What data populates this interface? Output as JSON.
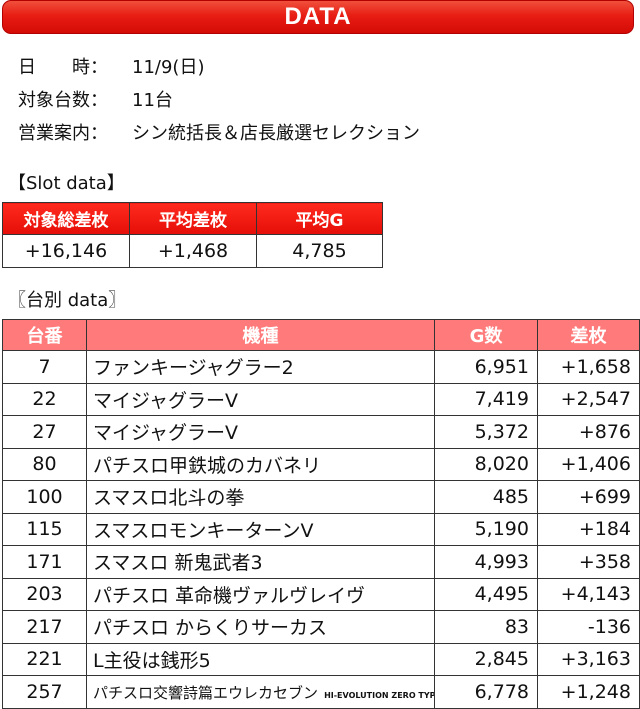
{
  "banner": {
    "title": "DATA"
  },
  "info": {
    "date_label": "日　　時：",
    "date_value": "11/9(日)",
    "count_label": "対象台数：",
    "count_value": "11台",
    "guide_label": "営業案内：",
    "guide_value": "シン統括長＆店長厳選セレクション"
  },
  "slot_section": {
    "label": "【Slot data】",
    "headers": [
      "対象総差枚",
      "平均差枚",
      "平均G"
    ],
    "values": [
      "+16,146",
      "+1,468",
      "4,785"
    ]
  },
  "unit_section": {
    "label": "〖台別 data〗",
    "headers": [
      "台番",
      "機種",
      "G数",
      "差枚"
    ],
    "rows": [
      {
        "no": "7",
        "name": "ファンキージャグラー2",
        "g": "6,951",
        "diff": "+1,658"
      },
      {
        "no": "22",
        "name": "マイジャグラーⅤ",
        "g": "7,419",
        "diff": "+2,547"
      },
      {
        "no": "27",
        "name": "マイジャグラーⅤ",
        "g": "5,372",
        "diff": "+876"
      },
      {
        "no": "80",
        "name": "パチスロ甲鉄城のカバネリ",
        "g": "8,020",
        "diff": "+1,406"
      },
      {
        "no": "100",
        "name": "スマスロ北斗の拳",
        "g": "485",
        "diff": "+699"
      },
      {
        "no": "115",
        "name": "スマスロモンキーターンV",
        "g": "5,190",
        "diff": "+184"
      },
      {
        "no": "171",
        "name": "スマスロ 新鬼武者3",
        "g": "4,993",
        "diff": "+358"
      },
      {
        "no": "203",
        "name": "パチスロ 革命機ヴァルヴレイヴ",
        "g": "4,495",
        "diff": "+4,143"
      },
      {
        "no": "217",
        "name": "パチスロ からくりサーカス",
        "g": "83",
        "diff": "-136"
      },
      {
        "no": "221",
        "name": "L主役は銭形5",
        "g": "2,845",
        "diff": "+3,163"
      },
      {
        "no": "257",
        "name": "パチスロ交響詩篇エウレカセブン",
        "name_suffix": "HI-EVOLUTION ZERO TYPE-ART",
        "g": "6,778",
        "diff": "+1,248"
      }
    ]
  }
}
